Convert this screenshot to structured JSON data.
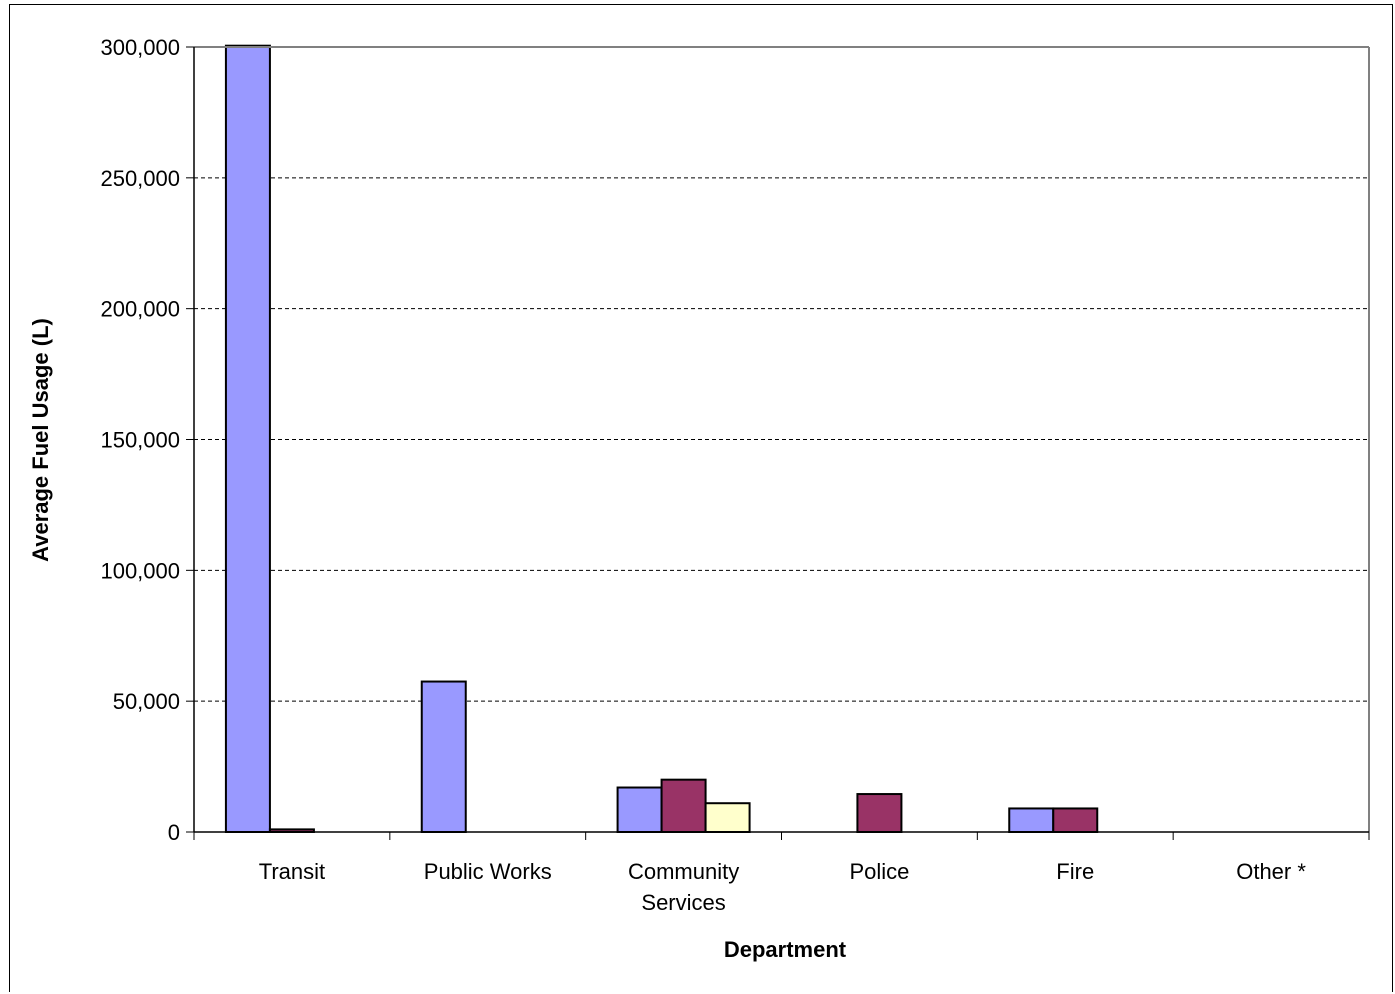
{
  "chart_data": {
    "type": "bar",
    "title": "",
    "xlabel": "Department",
    "ylabel": "Average Fuel Usage (L)",
    "ylim": [
      0,
      300000
    ],
    "yticks": [
      0,
      50000,
      100000,
      150000,
      200000,
      250000,
      300000
    ],
    "ytick_labels": [
      "0",
      "50,000",
      "100,000",
      "150,000",
      "200,000",
      "250,000",
      "300,000"
    ],
    "grid": true,
    "legend": "none",
    "categories": [
      {
        "label": [
          "Transit"
        ]
      },
      {
        "label": [
          "Public Works"
        ]
      },
      {
        "label": [
          "Community",
          "Services"
        ]
      },
      {
        "label": [
          "Police"
        ]
      },
      {
        "label": [
          "Fire"
        ]
      },
      {
        "label": [
          "Other *"
        ]
      }
    ],
    "series": [
      {
        "color": "#9999FF",
        "values": [
          300500,
          57500,
          17000,
          0,
          9000,
          0
        ]
      },
      {
        "color": "#993366",
        "values": [
          1000,
          0,
          20000,
          14500,
          9000,
          0
        ]
      },
      {
        "color": "#FFFFCC",
        "values": [
          0,
          0,
          11000,
          0,
          0,
          0
        ]
      }
    ]
  }
}
